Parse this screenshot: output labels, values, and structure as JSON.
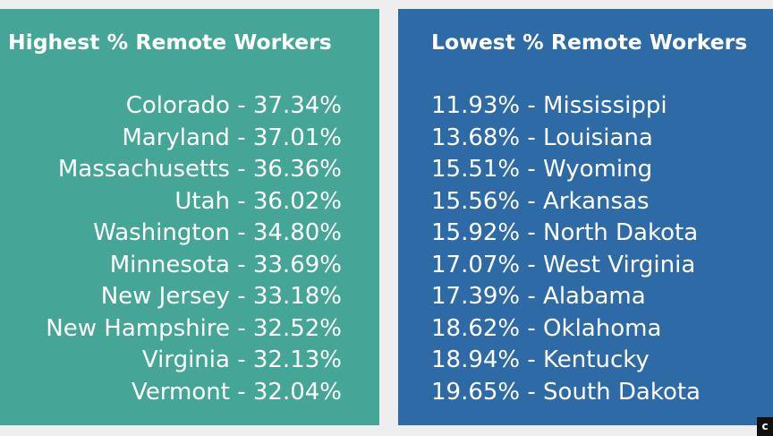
{
  "left_panel": {
    "title": "Highest % Remote Workers",
    "color": "#45a597",
    "items": [
      "Colorado - 37.34%",
      "Maryland - 37.01%",
      "Massachusetts - 36.36%",
      "Utah - 36.02%",
      "Washington - 34.80%",
      "Minnesota - 33.69%",
      "New Jersey - 33.18%",
      "New Hampshire - 32.52%",
      "Virginia - 32.13%",
      "Vermont - 32.04%"
    ]
  },
  "right_panel": {
    "title": "Lowest % Remote Workers",
    "color": "#2e6aa5",
    "items": [
      "11.93% - Mississippi",
      "13.68% - Louisiana",
      "15.51% - Wyoming",
      "15.56% - Arkansas",
      "15.92% - North Dakota",
      "17.07% - West Virginia",
      "17.39% - Alabama",
      "18.62% - Oklahoma",
      "18.94% - Kentucky",
      "19.65% - South Dakota"
    ]
  },
  "corner_badge": "c"
}
